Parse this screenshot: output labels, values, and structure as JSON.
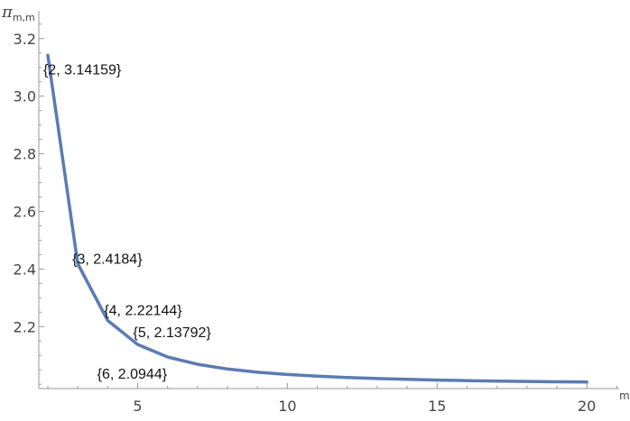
{
  "chart_data": {
    "type": "line",
    "ylabel_main": "π",
    "ylabel_sub": "m,m",
    "xlabel": "m",
    "xlim": [
      1.7,
      21.2
    ],
    "ylim": [
      1.985,
      3.265
    ],
    "x_ticks": [
      5,
      10,
      15,
      20
    ],
    "x_tick_labels": [
      "5",
      "10",
      "15",
      "20"
    ],
    "y_ticks": [
      2.2,
      2.4,
      2.6,
      2.8,
      3.0,
      3.2
    ],
    "y_tick_labels": [
      "2.2",
      "2.4",
      "2.6",
      "2.8",
      "3.0",
      "3.2"
    ],
    "line_color": "#5b7bb3",
    "series": [
      {
        "x": [
          2,
          3,
          4,
          5,
          6,
          7,
          8,
          9,
          10,
          11,
          12,
          13,
          14,
          15,
          16,
          17,
          18,
          19,
          20
        ],
        "values": [
          3.14159,
          2.4184,
          2.22144,
          2.13792,
          2.0944,
          2.0691,
          2.0528,
          2.0417,
          2.0337,
          2.0278,
          2.0233,
          2.0197,
          2.0168,
          2.0145,
          2.0126,
          2.011,
          2.0096,
          2.0085,
          2.0075
        ]
      }
    ],
    "annotations": [
      {
        "x": 2,
        "y": 3.14159,
        "text": "{2, 3.14159}"
      },
      {
        "x": 3,
        "y": 2.4184,
        "text": "{3, 2.4184}"
      },
      {
        "x": 4,
        "y": 2.22144,
        "text": "{4, 2.22144}"
      },
      {
        "x": 5,
        "y": 2.13792,
        "text": "{5, 2.13792}"
      },
      {
        "x": 6,
        "y": 2.0944,
        "text": "{6, 2.0944}"
      }
    ]
  }
}
